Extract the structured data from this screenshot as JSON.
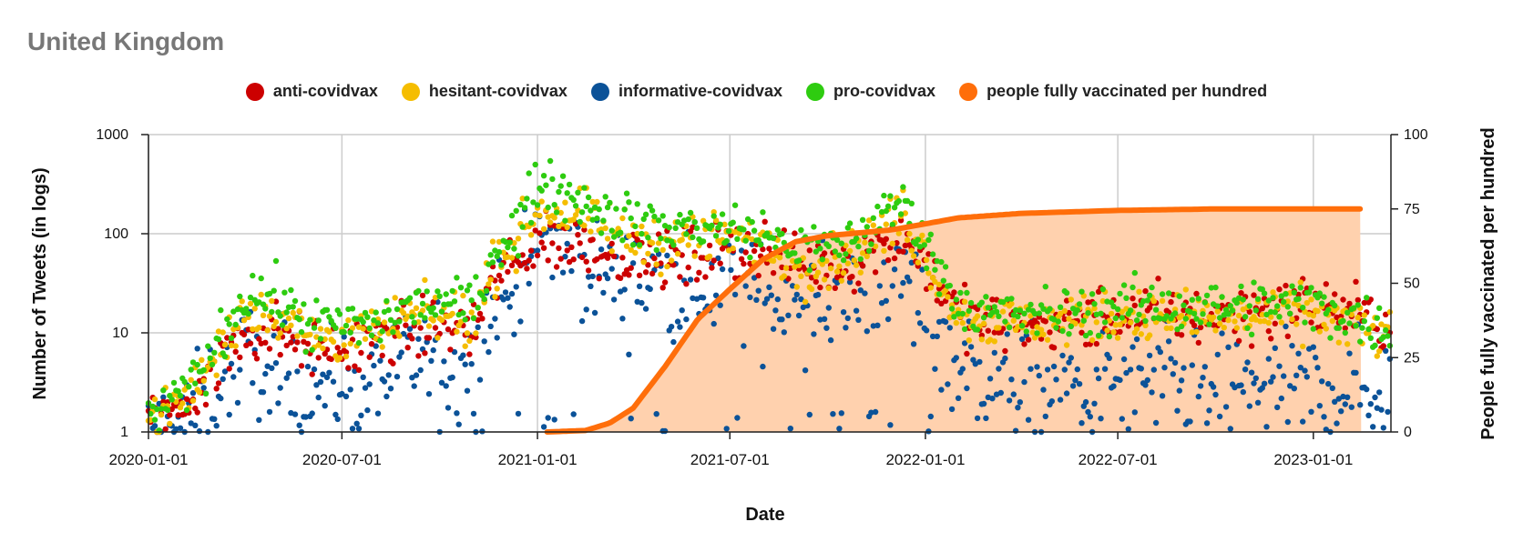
{
  "chart_data": {
    "type": "scatter",
    "title": "United Kingdom",
    "xlabel": "Date",
    "ylabel_left": "Number of Tweets (in logs)",
    "ylabel_right": "People fully vaccinated per hundred",
    "x_range": [
      "2020-01-01",
      "2023-03-15"
    ],
    "x_ticks": [
      "2020-01-01",
      "2020-07-01",
      "2021-01-01",
      "2021-07-01",
      "2022-01-01",
      "2022-07-01",
      "2023-01-01"
    ],
    "y_left_scale": "log",
    "y_left_range": [
      1,
      1000
    ],
    "y_left_ticks": [
      "1",
      "10",
      "100",
      "1000"
    ],
    "y_right_range": [
      0,
      100
    ],
    "y_right_ticks": [
      "0",
      "25",
      "50",
      "75",
      "100"
    ],
    "legend": [
      {
        "name": "anti-covidvax",
        "color": "#cc0000"
      },
      {
        "name": "hesitant-covidvax",
        "color": "#f5bd00"
      },
      {
        "name": "informative-covidvax",
        "color": "#0b5298"
      },
      {
        "name": "pro-covidvax",
        "color": "#2ecc10"
      },
      {
        "name": "people fully vaccinated per hundred",
        "color": "#ff6e0a"
      }
    ],
    "series": [
      {
        "name": "pro-covidvax",
        "color": "#2ecc10",
        "trend": [
          [
            "2020-01-01",
            1.5
          ],
          [
            "2020-02-01",
            2.2
          ],
          [
            "2020-03-01",
            6
          ],
          [
            "2020-04-01",
            25
          ],
          [
            "2020-05-01",
            22
          ],
          [
            "2020-06-01",
            12
          ],
          [
            "2020-07-01",
            12
          ],
          [
            "2020-08-01",
            12
          ],
          [
            "2020-09-01",
            18
          ],
          [
            "2020-10-01",
            20
          ],
          [
            "2020-11-01",
            18
          ],
          [
            "2020-11-25",
            80
          ],
          [
            "2020-12-15",
            110
          ],
          [
            "2021-01-01",
            350
          ],
          [
            "2021-02-01",
            250
          ],
          [
            "2021-03-01",
            170
          ],
          [
            "2021-04-01",
            130
          ],
          [
            "2021-05-01",
            110
          ],
          [
            "2021-06-01",
            120
          ],
          [
            "2021-07-01",
            110
          ],
          [
            "2021-08-01",
            100
          ],
          [
            "2021-09-01",
            70
          ],
          [
            "2021-10-01",
            70
          ],
          [
            "2021-11-01",
            90
          ],
          [
            "2021-12-10",
            220
          ],
          [
            "2022-01-01",
            80
          ],
          [
            "2022-02-01",
            20
          ],
          [
            "2022-03-01",
            15
          ],
          [
            "2022-05-01",
            15
          ],
          [
            "2022-07-01",
            18
          ],
          [
            "2022-10-01",
            18
          ],
          [
            "2023-01-01",
            20
          ],
          [
            "2023-03-15",
            10
          ]
        ]
      },
      {
        "name": "hesitant-covidvax",
        "color": "#f5bd00",
        "trend": [
          [
            "2020-01-01",
            1.3
          ],
          [
            "2020-02-01",
            2
          ],
          [
            "2020-03-01",
            5
          ],
          [
            "2020-04-01",
            18
          ],
          [
            "2020-05-01",
            16
          ],
          [
            "2020-06-01",
            9
          ],
          [
            "2020-07-01",
            9
          ],
          [
            "2020-08-01",
            10
          ],
          [
            "2020-09-01",
            14
          ],
          [
            "2020-10-01",
            15
          ],
          [
            "2020-11-01",
            13
          ],
          [
            "2020-11-25",
            60
          ],
          [
            "2020-12-15",
            90
          ],
          [
            "2021-01-01",
            170
          ],
          [
            "2021-02-01",
            160
          ],
          [
            "2021-03-01",
            120
          ],
          [
            "2021-04-01",
            90
          ],
          [
            "2021-05-01",
            80
          ],
          [
            "2021-06-01",
            90
          ],
          [
            "2021-07-01",
            90
          ],
          [
            "2021-08-01",
            80
          ],
          [
            "2021-09-01",
            50
          ],
          [
            "2021-10-01",
            50
          ],
          [
            "2021-11-01",
            70
          ],
          [
            "2021-12-10",
            160
          ],
          [
            "2022-01-01",
            60
          ],
          [
            "2022-02-01",
            15
          ],
          [
            "2022-03-01",
            13
          ],
          [
            "2022-05-01",
            13
          ],
          [
            "2022-07-01",
            15
          ],
          [
            "2022-10-01",
            14
          ],
          [
            "2023-01-01",
            16
          ],
          [
            "2023-03-15",
            9
          ]
        ]
      },
      {
        "name": "anti-covidvax",
        "color": "#cc0000",
        "trend": [
          [
            "2020-01-01",
            1.2
          ],
          [
            "2020-02-01",
            1.8
          ],
          [
            "2020-03-01",
            4
          ],
          [
            "2020-04-01",
            10
          ],
          [
            "2020-05-01",
            10
          ],
          [
            "2020-06-01",
            7
          ],
          [
            "2020-07-01",
            7
          ],
          [
            "2020-08-01",
            8
          ],
          [
            "2020-09-01",
            11
          ],
          [
            "2020-10-01",
            12
          ],
          [
            "2020-11-01",
            10
          ],
          [
            "2020-11-25",
            40
          ],
          [
            "2020-12-15",
            50
          ],
          [
            "2021-01-01",
            90
          ],
          [
            "2021-02-01",
            80
          ],
          [
            "2021-03-01",
            70
          ],
          [
            "2021-04-01",
            60
          ],
          [
            "2021-05-01",
            50
          ],
          [
            "2021-06-01",
            60
          ],
          [
            "2021-07-01",
            70
          ],
          [
            "2021-08-01",
            70
          ],
          [
            "2021-09-01",
            50
          ],
          [
            "2021-10-01",
            45
          ],
          [
            "2021-11-01",
            60
          ],
          [
            "2021-12-10",
            100
          ],
          [
            "2022-01-01",
            50
          ],
          [
            "2022-02-01",
            15
          ],
          [
            "2022-03-01",
            12
          ],
          [
            "2022-05-01",
            12
          ],
          [
            "2022-07-01",
            15
          ],
          [
            "2022-10-01",
            15
          ],
          [
            "2023-01-01",
            20
          ],
          [
            "2023-03-15",
            12
          ]
        ]
      },
      {
        "name": "informative-covidvax",
        "color": "#0b5298",
        "trend": [
          [
            "2020-01-01",
            1
          ],
          [
            "2020-02-01",
            1.2
          ],
          [
            "2020-03-01",
            2.5
          ],
          [
            "2020-04-01",
            6
          ],
          [
            "2020-05-01",
            4
          ],
          [
            "2020-06-01",
            3
          ],
          [
            "2020-07-01",
            3
          ],
          [
            "2020-08-01",
            4
          ],
          [
            "2020-09-01",
            5
          ],
          [
            "2020-10-01",
            5
          ],
          [
            "2020-11-01",
            5
          ],
          [
            "2020-11-25",
            20
          ],
          [
            "2020-12-15",
            30
          ],
          [
            "2021-01-01",
            80
          ],
          [
            "2021-02-01",
            60
          ],
          [
            "2021-03-01",
            40
          ],
          [
            "2021-04-01",
            35
          ],
          [
            "2021-05-01",
            30
          ],
          [
            "2021-06-01",
            30
          ],
          [
            "2021-07-01",
            35
          ],
          [
            "2021-08-01",
            22
          ],
          [
            "2021-09-01",
            20
          ],
          [
            "2021-10-01",
            18
          ],
          [
            "2021-11-01",
            22
          ],
          [
            "2021-12-10",
            40
          ],
          [
            "2022-01-01",
            15
          ],
          [
            "2022-02-01",
            5
          ],
          [
            "2022-03-01",
            3.5
          ],
          [
            "2022-05-01",
            3
          ],
          [
            "2022-07-01",
            3
          ],
          [
            "2022-10-01",
            3
          ],
          [
            "2023-01-01",
            3
          ],
          [
            "2023-03-15",
            2.5
          ]
        ]
      },
      {
        "name": "people fully vaccinated per hundred",
        "color": "#ff6e0a",
        "axis": "right",
        "style": "line-area",
        "points": [
          [
            "2021-01-10",
            0
          ],
          [
            "2021-02-15",
            0.5
          ],
          [
            "2021-03-10",
            3
          ],
          [
            "2021-04-01",
            8
          ],
          [
            "2021-05-01",
            22
          ],
          [
            "2021-06-01",
            38
          ],
          [
            "2021-07-01",
            48
          ],
          [
            "2021-08-01",
            58
          ],
          [
            "2021-09-01",
            64
          ],
          [
            "2021-10-01",
            66
          ],
          [
            "2021-11-01",
            67
          ],
          [
            "2021-12-01",
            68
          ],
          [
            "2022-01-01",
            70
          ],
          [
            "2022-02-01",
            72
          ],
          [
            "2022-04-01",
            73.5
          ],
          [
            "2022-07-01",
            74.5
          ],
          [
            "2022-10-01",
            75
          ],
          [
            "2023-02-15",
            75
          ]
        ]
      }
    ]
  }
}
